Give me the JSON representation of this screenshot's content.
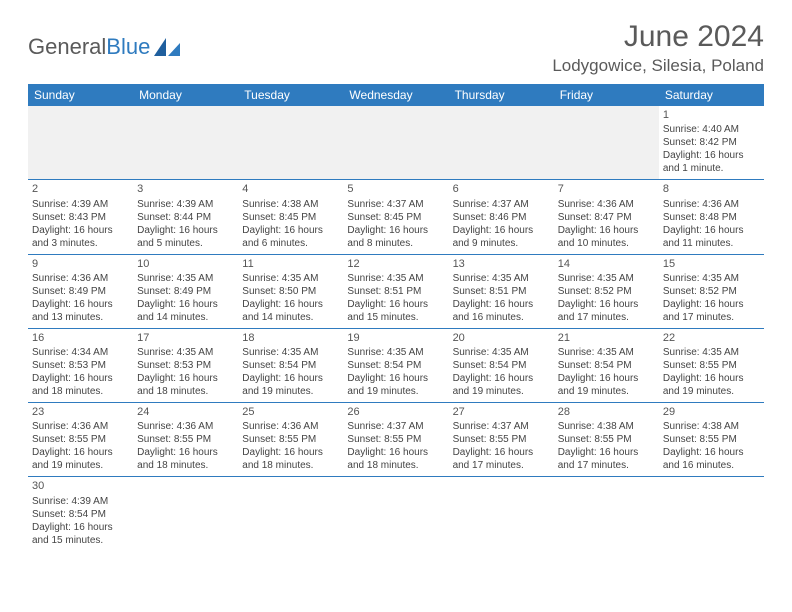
{
  "logo": {
    "text1": "General",
    "text2": "Blue"
  },
  "title": "June 2024",
  "location": "Lodygowice, Silesia, Poland",
  "colors": {
    "header_bg": "#2f7bbf",
    "header_text": "#ffffff",
    "border": "#2f7bbf",
    "empty_bg": "#f1f1f1",
    "text": "#444444",
    "title_text": "#5a5a5a"
  },
  "weekdays": [
    "Sunday",
    "Monday",
    "Tuesday",
    "Wednesday",
    "Thursday",
    "Friday",
    "Saturday"
  ],
  "weeks": [
    [
      null,
      null,
      null,
      null,
      null,
      null,
      {
        "day": "1",
        "sunrise": "Sunrise: 4:40 AM",
        "sunset": "Sunset: 8:42 PM",
        "daylight": "Daylight: 16 hours and 1 minute."
      }
    ],
    [
      {
        "day": "2",
        "sunrise": "Sunrise: 4:39 AM",
        "sunset": "Sunset: 8:43 PM",
        "daylight": "Daylight: 16 hours and 3 minutes."
      },
      {
        "day": "3",
        "sunrise": "Sunrise: 4:39 AM",
        "sunset": "Sunset: 8:44 PM",
        "daylight": "Daylight: 16 hours and 5 minutes."
      },
      {
        "day": "4",
        "sunrise": "Sunrise: 4:38 AM",
        "sunset": "Sunset: 8:45 PM",
        "daylight": "Daylight: 16 hours and 6 minutes."
      },
      {
        "day": "5",
        "sunrise": "Sunrise: 4:37 AM",
        "sunset": "Sunset: 8:45 PM",
        "daylight": "Daylight: 16 hours and 8 minutes."
      },
      {
        "day": "6",
        "sunrise": "Sunrise: 4:37 AM",
        "sunset": "Sunset: 8:46 PM",
        "daylight": "Daylight: 16 hours and 9 minutes."
      },
      {
        "day": "7",
        "sunrise": "Sunrise: 4:36 AM",
        "sunset": "Sunset: 8:47 PM",
        "daylight": "Daylight: 16 hours and 10 minutes."
      },
      {
        "day": "8",
        "sunrise": "Sunrise: 4:36 AM",
        "sunset": "Sunset: 8:48 PM",
        "daylight": "Daylight: 16 hours and 11 minutes."
      }
    ],
    [
      {
        "day": "9",
        "sunrise": "Sunrise: 4:36 AM",
        "sunset": "Sunset: 8:49 PM",
        "daylight": "Daylight: 16 hours and 13 minutes."
      },
      {
        "day": "10",
        "sunrise": "Sunrise: 4:35 AM",
        "sunset": "Sunset: 8:49 PM",
        "daylight": "Daylight: 16 hours and 14 minutes."
      },
      {
        "day": "11",
        "sunrise": "Sunrise: 4:35 AM",
        "sunset": "Sunset: 8:50 PM",
        "daylight": "Daylight: 16 hours and 14 minutes."
      },
      {
        "day": "12",
        "sunrise": "Sunrise: 4:35 AM",
        "sunset": "Sunset: 8:51 PM",
        "daylight": "Daylight: 16 hours and 15 minutes."
      },
      {
        "day": "13",
        "sunrise": "Sunrise: 4:35 AM",
        "sunset": "Sunset: 8:51 PM",
        "daylight": "Daylight: 16 hours and 16 minutes."
      },
      {
        "day": "14",
        "sunrise": "Sunrise: 4:35 AM",
        "sunset": "Sunset: 8:52 PM",
        "daylight": "Daylight: 16 hours and 17 minutes."
      },
      {
        "day": "15",
        "sunrise": "Sunrise: 4:35 AM",
        "sunset": "Sunset: 8:52 PM",
        "daylight": "Daylight: 16 hours and 17 minutes."
      }
    ],
    [
      {
        "day": "16",
        "sunrise": "Sunrise: 4:34 AM",
        "sunset": "Sunset: 8:53 PM",
        "daylight": "Daylight: 16 hours and 18 minutes."
      },
      {
        "day": "17",
        "sunrise": "Sunrise: 4:35 AM",
        "sunset": "Sunset: 8:53 PM",
        "daylight": "Daylight: 16 hours and 18 minutes."
      },
      {
        "day": "18",
        "sunrise": "Sunrise: 4:35 AM",
        "sunset": "Sunset: 8:54 PM",
        "daylight": "Daylight: 16 hours and 19 minutes."
      },
      {
        "day": "19",
        "sunrise": "Sunrise: 4:35 AM",
        "sunset": "Sunset: 8:54 PM",
        "daylight": "Daylight: 16 hours and 19 minutes."
      },
      {
        "day": "20",
        "sunrise": "Sunrise: 4:35 AM",
        "sunset": "Sunset: 8:54 PM",
        "daylight": "Daylight: 16 hours and 19 minutes."
      },
      {
        "day": "21",
        "sunrise": "Sunrise: 4:35 AM",
        "sunset": "Sunset: 8:54 PM",
        "daylight": "Daylight: 16 hours and 19 minutes."
      },
      {
        "day": "22",
        "sunrise": "Sunrise: 4:35 AM",
        "sunset": "Sunset: 8:55 PM",
        "daylight": "Daylight: 16 hours and 19 minutes."
      }
    ],
    [
      {
        "day": "23",
        "sunrise": "Sunrise: 4:36 AM",
        "sunset": "Sunset: 8:55 PM",
        "daylight": "Daylight: 16 hours and 19 minutes."
      },
      {
        "day": "24",
        "sunrise": "Sunrise: 4:36 AM",
        "sunset": "Sunset: 8:55 PM",
        "daylight": "Daylight: 16 hours and 18 minutes."
      },
      {
        "day": "25",
        "sunrise": "Sunrise: 4:36 AM",
        "sunset": "Sunset: 8:55 PM",
        "daylight": "Daylight: 16 hours and 18 minutes."
      },
      {
        "day": "26",
        "sunrise": "Sunrise: 4:37 AM",
        "sunset": "Sunset: 8:55 PM",
        "daylight": "Daylight: 16 hours and 18 minutes."
      },
      {
        "day": "27",
        "sunrise": "Sunrise: 4:37 AM",
        "sunset": "Sunset: 8:55 PM",
        "daylight": "Daylight: 16 hours and 17 minutes."
      },
      {
        "day": "28",
        "sunrise": "Sunrise: 4:38 AM",
        "sunset": "Sunset: 8:55 PM",
        "daylight": "Daylight: 16 hours and 17 minutes."
      },
      {
        "day": "29",
        "sunrise": "Sunrise: 4:38 AM",
        "sunset": "Sunset: 8:55 PM",
        "daylight": "Daylight: 16 hours and 16 minutes."
      }
    ],
    [
      {
        "day": "30",
        "sunrise": "Sunrise: 4:39 AM",
        "sunset": "Sunset: 8:54 PM",
        "daylight": "Daylight: 16 hours and 15 minutes."
      },
      null,
      null,
      null,
      null,
      null,
      null
    ]
  ]
}
